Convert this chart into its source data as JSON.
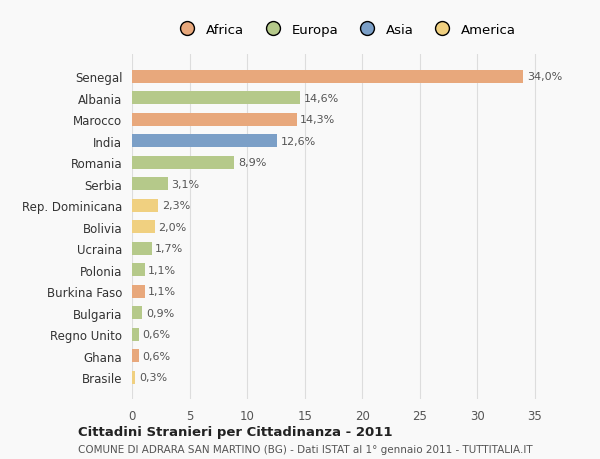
{
  "categories": [
    "Senegal",
    "Albania",
    "Marocco",
    "India",
    "Romania",
    "Serbia",
    "Rep. Dominicana",
    "Bolivia",
    "Ucraina",
    "Polonia",
    "Burkina Faso",
    "Bulgaria",
    "Regno Unito",
    "Ghana",
    "Brasile"
  ],
  "values": [
    34.0,
    14.6,
    14.3,
    12.6,
    8.9,
    3.1,
    2.3,
    2.0,
    1.7,
    1.1,
    1.1,
    0.9,
    0.6,
    0.6,
    0.3
  ],
  "labels": [
    "34,0%",
    "14,6%",
    "14,3%",
    "12,6%",
    "8,9%",
    "3,1%",
    "2,3%",
    "2,0%",
    "1,7%",
    "1,1%",
    "1,1%",
    "0,9%",
    "0,6%",
    "0,6%",
    "0,3%"
  ],
  "colors": [
    "#e8a87c",
    "#b5c98a",
    "#e8a87c",
    "#7b9fc7",
    "#b5c98a",
    "#b5c98a",
    "#f0d080",
    "#f0d080",
    "#b5c98a",
    "#b5c98a",
    "#e8a87c",
    "#b5c98a",
    "#b5c98a",
    "#e8a87c",
    "#f0d080"
  ],
  "continent_colors": {
    "Africa": "#e8a87c",
    "Europa": "#b5c98a",
    "Asia": "#7b9fc7",
    "America": "#f0d080"
  },
  "legend_labels": [
    "Africa",
    "Europa",
    "Asia",
    "America"
  ],
  "xlim": [
    0,
    37
  ],
  "xticks": [
    0,
    5,
    10,
    15,
    20,
    25,
    30,
    35
  ],
  "title": "Cittadini Stranieri per Cittadinanza - 2011",
  "subtitle": "COMUNE DI ADRARA SAN MARTINO (BG) - Dati ISTAT al 1° gennaio 2011 - TUTTITALIA.IT",
  "background_color": "#f9f9f9",
  "grid_color": "#dddddd",
  "bar_height": 0.6
}
